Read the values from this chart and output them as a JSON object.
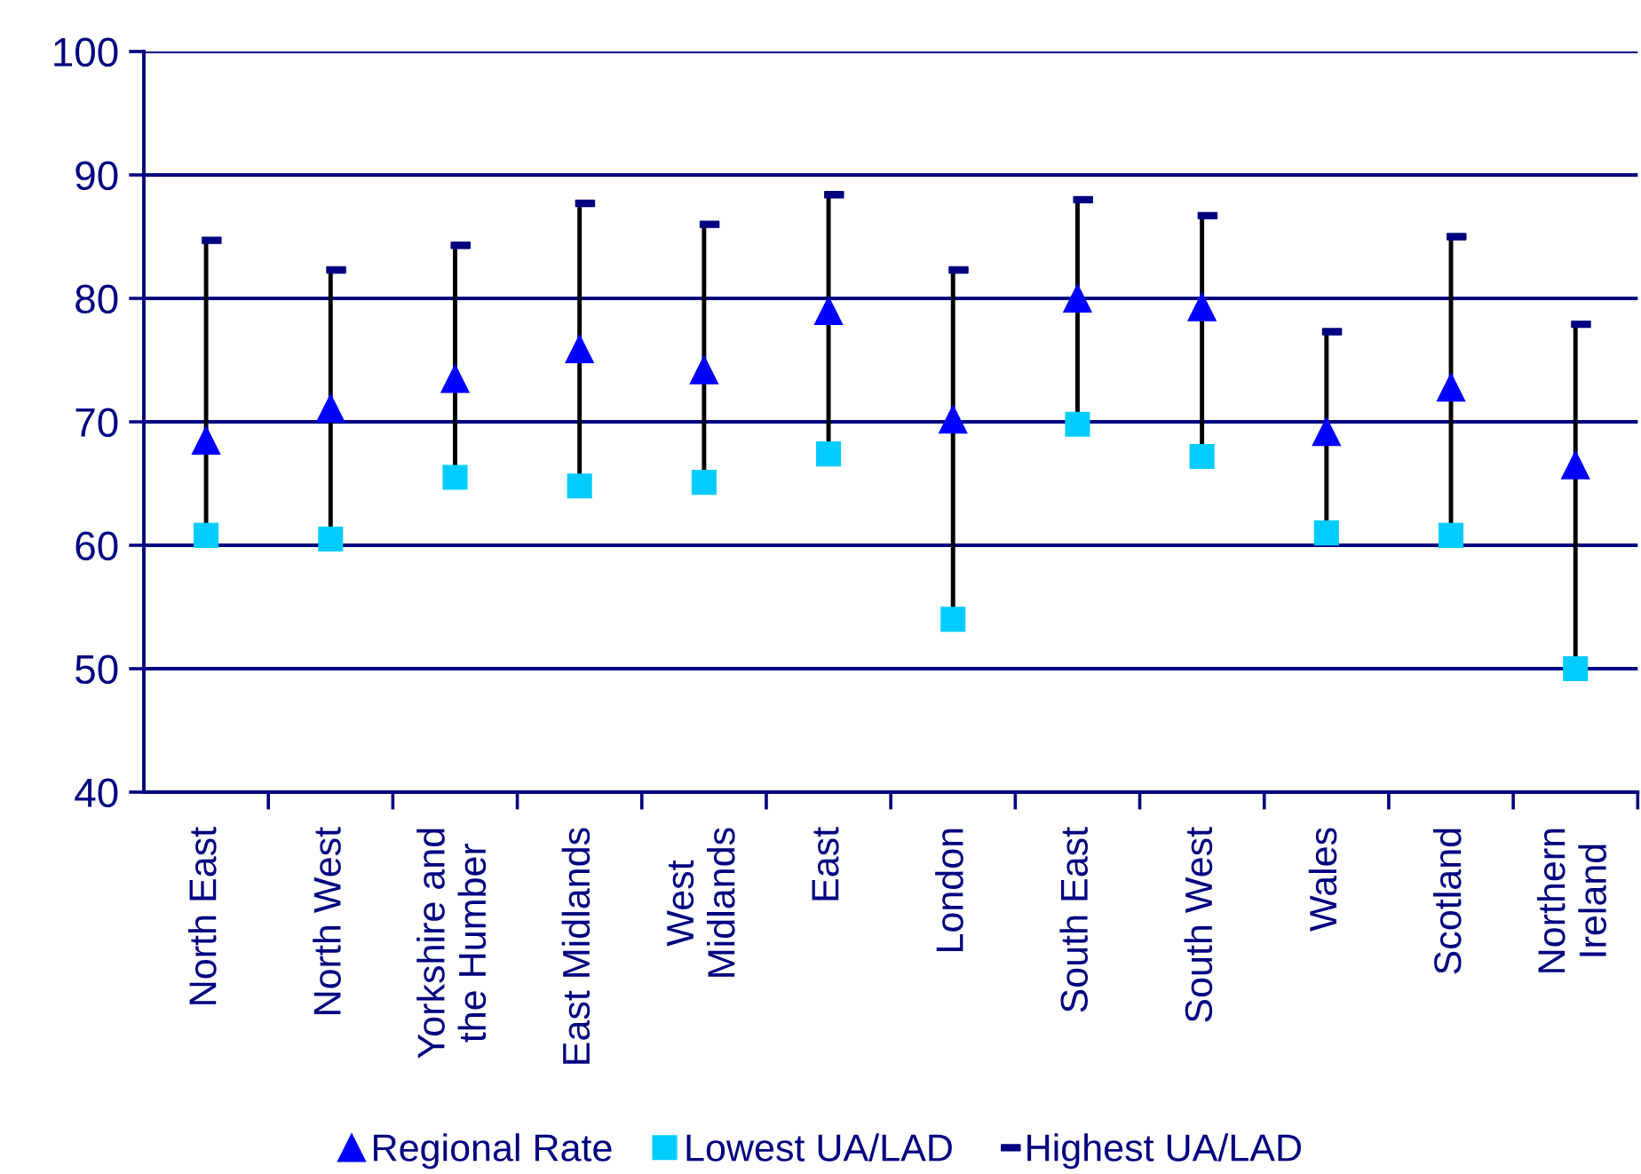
{
  "chart_data": {
    "type": "scatter",
    "categories": [
      "North East",
      "North West",
      "Yorkshire and\nthe Humber",
      "East Midlands",
      "West\nMidlands",
      "East",
      "London",
      "South East",
      "South West",
      "Wales",
      "Scotland",
      "Northern\nIreland"
    ],
    "series": [
      {
        "type": "bar",
        "color": "#000000",
        "base": [
          60.8,
          60.5,
          65.5,
          64.8,
          65.1,
          67.4,
          54.0,
          69.8,
          67.2,
          61.0,
          60.8,
          50.0
        ],
        "values": [
          23.9,
          21.8,
          18.8,
          22.9,
          20.9,
          21.0,
          28.3,
          18.2,
          19.5,
          16.3,
          24.2,
          27.9
        ]
      },
      {
        "name": "Regional Rate",
        "marker": "triangle",
        "color": "#0000ff",
        "values": [
          68.5,
          71.1,
          73.5,
          75.9,
          74.2,
          79.0,
          70.2,
          80.0,
          79.3,
          69.2,
          72.8,
          66.5
        ]
      },
      {
        "name": "Lowest UA/LAD",
        "marker": "square",
        "color": "#00ccff",
        "values": [
          60.8,
          60.5,
          65.5,
          64.8,
          65.1,
          67.4,
          54.0,
          69.8,
          67.2,
          61.0,
          60.8,
          50.0
        ]
      },
      {
        "name": "Highest UA/LAD",
        "color": "#000080",
        "values": [
          84.7,
          82.3,
          84.3,
          87.7,
          86.0,
          88.4,
          82.3,
          88.0,
          86.7,
          77.3,
          85.0,
          77.9
        ]
      }
    ],
    "ylim": [
      40,
      100
    ],
    "yticks": [
      40,
      50,
      60,
      70,
      80,
      90,
      100
    ],
    "grid": "y",
    "legend": "bottom"
  }
}
